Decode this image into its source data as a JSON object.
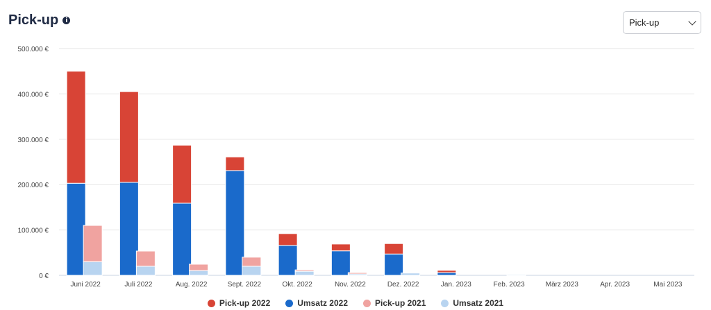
{
  "header": {
    "title": "Pick-up",
    "info_icon": "info-icon",
    "select_value": "Pick-up"
  },
  "chart_data": {
    "type": "bar",
    "stacked": true,
    "title": "Pick-up",
    "categories": [
      "Juni 2022",
      "Juli 2022",
      "Aug. 2022",
      "Sept. 2022",
      "Okt. 2022",
      "Nov. 2022",
      "Dez. 2022",
      "Jan. 2023",
      "Feb. 2023",
      "März 2023",
      "Apr. 2023",
      "Mai 2023"
    ],
    "yticks": [
      "0 €",
      "100.000 €",
      "200.000 €",
      "300.000 €",
      "400.000 €",
      "500.000 €"
    ],
    "ylim": [
      0,
      500000
    ],
    "grid": true,
    "legend_position": "bottom",
    "series": [
      {
        "name": "Umsatz 2022",
        "stack": "2022",
        "color": "#1a6acb",
        "values": [
          203000,
          205000,
          159000,
          231000,
          66000,
          54000,
          47000,
          6000,
          0,
          0,
          0,
          0
        ]
      },
      {
        "name": "Pick-up 2022",
        "stack": "2022",
        "color": "#d84436",
        "values": [
          247000,
          200000,
          128000,
          30000,
          26000,
          15000,
          23000,
          5000,
          0,
          0,
          0,
          0
        ]
      },
      {
        "name": "Umsatz 2021",
        "stack": "2021",
        "color": "#b8d4f0",
        "values": [
          30000,
          20000,
          10500,
          20000,
          9000,
          3000,
          5000,
          0,
          2000,
          0,
          0,
          0
        ]
      },
      {
        "name": "Pick-up 2021",
        "stack": "2021",
        "color": "#f0a3a0",
        "values": [
          80000,
          33500,
          14000,
          20000,
          3000,
          3000,
          0,
          0,
          0,
          0,
          0,
          0
        ]
      }
    ],
    "legend": [
      "Pick-up 2022",
      "Umsatz 2022",
      "Pick-up 2021",
      "Umsatz 2021"
    ]
  }
}
